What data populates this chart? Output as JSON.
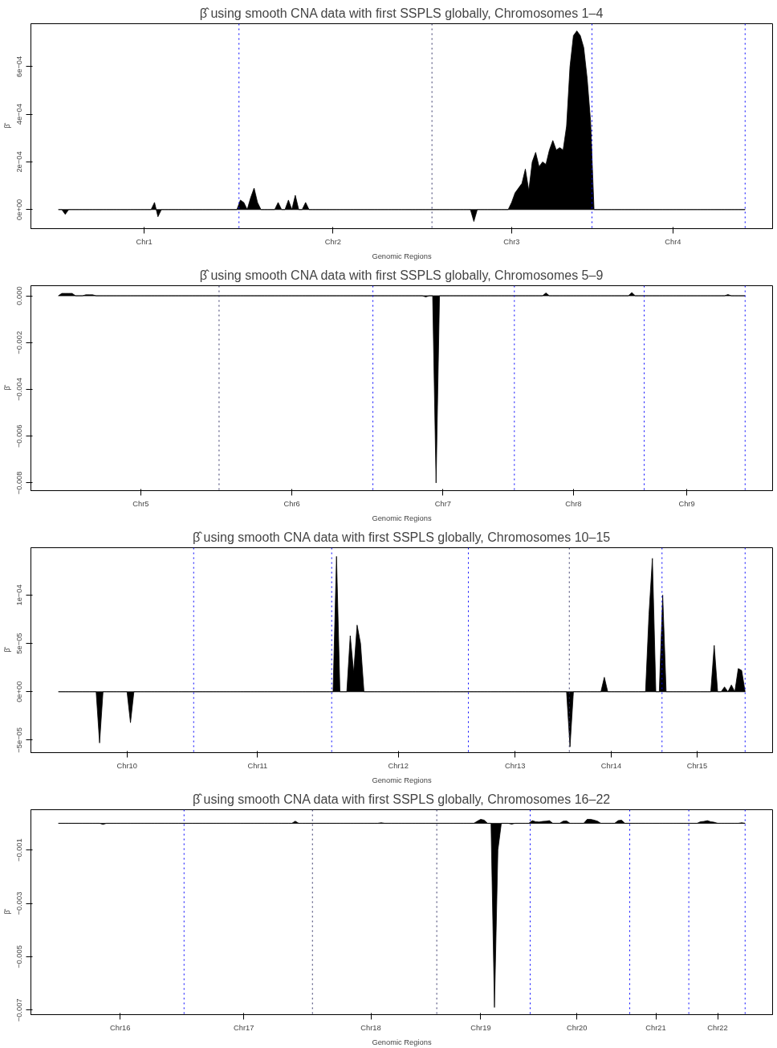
{
  "chart_data": [
    {
      "type": "area",
      "title": "β̂ using smooth CNA data with first SSPLS globally, Chromosomes 1–4",
      "xlabel": "Genomic Regions",
      "ylabel": "β̂",
      "color": "#000000",
      "categories": [
        null,
        null,
        null,
        null,
        null,
        null,
        null,
        null,
        null,
        null,
        null,
        null,
        null,
        null,
        null,
        null,
        null,
        null,
        null,
        null,
        null,
        null,
        null,
        null,
        null,
        "Chr1",
        null,
        null,
        null,
        null,
        null,
        null,
        null,
        null,
        null,
        null,
        null,
        null,
        null,
        null,
        null,
        null,
        null,
        null,
        null,
        null,
        null,
        null,
        null,
        null,
        null,
        null,
        null,
        null,
        null,
        null,
        null,
        null,
        null,
        null,
        null,
        null,
        null,
        null,
        null,
        null,
        null,
        null,
        null,
        null,
        null,
        null,
        null,
        null,
        null,
        null,
        null,
        null,
        null,
        null,
        "Chr2",
        null,
        null,
        null,
        null,
        null,
        null,
        null,
        null,
        null,
        null,
        null,
        null,
        null,
        null,
        null,
        null,
        null,
        null,
        null,
        null,
        null,
        null,
        null,
        null,
        null,
        null,
        null,
        null,
        null,
        null,
        null,
        null,
        null,
        null,
        null,
        null,
        null,
        null,
        null,
        null,
        null,
        null,
        null,
        null,
        null,
        null,
        null,
        null,
        null,
        null,
        null,
        "Chr3",
        null,
        null,
        null,
        null,
        null,
        null,
        null,
        null,
        null,
        null,
        null,
        null,
        null,
        null,
        null,
        null,
        null,
        null,
        null,
        null,
        null,
        null,
        null,
        null,
        null,
        null,
        null,
        null,
        null,
        null,
        null,
        null,
        null,
        null,
        null,
        null,
        null,
        null,
        null,
        null,
        null,
        null,
        null,
        null,
        null,
        null,
        "Chr4",
        null,
        null,
        null,
        null,
        null,
        null,
        null,
        null,
        null,
        null,
        null,
        null,
        null,
        null,
        null,
        null,
        null,
        null,
        null,
        null,
        null
      ],
      "values": [
        0,
        0,
        -2e-05,
        0,
        0,
        0,
        0,
        0,
        0,
        0,
        0,
        0,
        0,
        0,
        0,
        0,
        0,
        0,
        0,
        0,
        0,
        0,
        0,
        0,
        0,
        0,
        0,
        0,
        3e-05,
        -3e-05,
        0,
        0,
        0,
        0,
        0,
        0,
        0,
        0,
        0,
        0,
        0,
        0,
        0,
        0,
        0,
        0,
        0,
        0,
        0,
        0,
        0,
        0,
        0,
        4e-05,
        3e-05,
        0,
        5e-05,
        9e-05,
        3e-05,
        0,
        0,
        0,
        0,
        0,
        3e-05,
        0,
        0,
        4e-05,
        0,
        6e-05,
        0,
        0,
        3e-05,
        0,
        0,
        0,
        0,
        0,
        0,
        0,
        0,
        0,
        0,
        0,
        0,
        0,
        0,
        0,
        0,
        0,
        0,
        0,
        0,
        0,
        0,
        0,
        0,
        0,
        0,
        0,
        0,
        0,
        0,
        0,
        0,
        0,
        0,
        0,
        0,
        0,
        0,
        0,
        0,
        0,
        0,
        0,
        0,
        0,
        0,
        0,
        0,
        -5e-05,
        0,
        0,
        0,
        0,
        0,
        0,
        0,
        0,
        0,
        0,
        3e-05,
        7e-05,
        9e-05,
        0.00011,
        0.00017,
        8e-05,
        0.0002,
        0.00024,
        0.00018,
        0.0002,
        0.00019,
        0.00025,
        0.00029,
        0.00025,
        0.00026,
        0.00025,
        0.00035,
        0.0006,
        0.00073,
        0.00075,
        0.00073,
        0.00068,
        0.00055,
        0.00037,
        0,
        0,
        0,
        0,
        0,
        0,
        0,
        0,
        0,
        0,
        0,
        0,
        0,
        0,
        0,
        0,
        0,
        0,
        0,
        0,
        0,
        0,
        0,
        0,
        0,
        0,
        0,
        0,
        0,
        0,
        0,
        0,
        0,
        0,
        0,
        0,
        0,
        0,
        0,
        0,
        0,
        0,
        0,
        0,
        0
      ],
      "ylim": [
        -8e-05,
        0.00078
      ],
      "yticks": [
        {
          "value": 0,
          "label": "0e+00"
        },
        {
          "value": 0.0002,
          "label": "2e−04"
        },
        {
          "value": 0.0004,
          "label": "4e−04"
        },
        {
          "value": 0.0006,
          "label": "6e−04"
        }
      ]
    },
    {
      "type": "area",
      "title": "β̂ using smooth CNA data with first SSPLS globally, Chromosomes 5–9",
      "xlabel": "Genomic Regions",
      "ylabel": "β̂",
      "color": "#000000",
      "categories": [
        null,
        null,
        null,
        null,
        null,
        null,
        null,
        null,
        null,
        null,
        null,
        null,
        null,
        null,
        null,
        null,
        null,
        null,
        null,
        null,
        null,
        null,
        null,
        null,
        "Chr5",
        null,
        null,
        null,
        null,
        null,
        null,
        null,
        null,
        null,
        null,
        null,
        null,
        null,
        null,
        null,
        null,
        null,
        null,
        null,
        null,
        null,
        null,
        null,
        null,
        null,
        null,
        null,
        null,
        null,
        null,
        null,
        null,
        null,
        null,
        null,
        null,
        null,
        null,
        null,
        null,
        null,
        null,
        null,
        "Chr6",
        null,
        null,
        null,
        null,
        null,
        null,
        null,
        null,
        null,
        null,
        null,
        null,
        null,
        null,
        null,
        null,
        null,
        null,
        null,
        null,
        null,
        null,
        null,
        null,
        null,
        null,
        null,
        null,
        null,
        null,
        null,
        null,
        null,
        null,
        null,
        null,
        null,
        null,
        null,
        null,
        null,
        null,
        null,
        "Chr7",
        null,
        null,
        null,
        null,
        null,
        null,
        null,
        null,
        null,
        null,
        null,
        null,
        null,
        null,
        null,
        null,
        null,
        null,
        null,
        null,
        null,
        null,
        null,
        null,
        null,
        null,
        null,
        null,
        null,
        null,
        null,
        null,
        null,
        null,
        null,
        null,
        null,
        "Chr8",
        null,
        null,
        null,
        null,
        null,
        null,
        null,
        null,
        null,
        null,
        null,
        null,
        null,
        null,
        null,
        null,
        null,
        null,
        null,
        null,
        null,
        null,
        null,
        null,
        null,
        null,
        null,
        null,
        null,
        null,
        null,
        null,
        "Chr9",
        null,
        null,
        null,
        null,
        null,
        null,
        null,
        null,
        null,
        null,
        null,
        null,
        null,
        null,
        null,
        null,
        null
      ],
      "values": [
        0,
        0.0001,
        0.0001,
        0.0001,
        0.0001,
        0,
        0,
        0,
        4e-05,
        4e-05,
        4e-05,
        0,
        0,
        0,
        0,
        0,
        0,
        0,
        0,
        0,
        0,
        0,
        0,
        0,
        0,
        0,
        0,
        0,
        0,
        0,
        0,
        0,
        0,
        0,
        0,
        0,
        0,
        0,
        0,
        0,
        0,
        0,
        0,
        0,
        0,
        0,
        0,
        0,
        0,
        0,
        0,
        0,
        0,
        0,
        0,
        0,
        0,
        0,
        0,
        0,
        0,
        0,
        0,
        0,
        0,
        0,
        0,
        0,
        0,
        0,
        0,
        0,
        0,
        0,
        0,
        0,
        0,
        0,
        0,
        0,
        0,
        0,
        0,
        0,
        0,
        0,
        0,
        0,
        0,
        0,
        0,
        0,
        0,
        0,
        0,
        0,
        0,
        0,
        0,
        0,
        0,
        0,
        0,
        0,
        0,
        0,
        0,
        -5e-05,
        0,
        0,
        -0.008,
        0,
        0,
        0,
        0,
        0,
        0,
        0,
        0,
        0,
        0,
        0,
        0,
        0,
        0,
        0,
        0,
        0,
        0,
        0,
        0,
        0,
        0,
        0,
        0,
        0,
        0,
        0,
        0,
        0,
        0,
        0,
        0.00012,
        0,
        0,
        0,
        0,
        0,
        0,
        0,
        0,
        0,
        0,
        0,
        0,
        0,
        0,
        0,
        0,
        0,
        0,
        0,
        0,
        0,
        0,
        0,
        0,
        0.00014,
        0,
        0,
        0,
        0,
        0,
        0,
        0,
        0,
        0,
        0,
        0,
        0,
        0,
        0,
        0,
        0,
        0,
        0,
        0,
        0,
        0,
        0,
        0,
        0,
        0,
        0,
        0,
        5e-05,
        0,
        0,
        0,
        0,
        0
      ],
      "ylim": [
        -0.00833,
        0.00043
      ],
      "yticks": [
        {
          "value": 0,
          "label": "0.000"
        },
        {
          "value": -0.002,
          "label": "−0.002"
        },
        {
          "value": -0.004,
          "label": "−0.004"
        },
        {
          "value": -0.006,
          "label": "−0.006"
        },
        {
          "value": -0.008,
          "label": "−0.008"
        }
      ]
    },
    {
      "type": "area",
      "title": "β̂ using smooth CNA data with first SSPLS globally, Chromosomes 10–15",
      "xlabel": "Genomic Regions",
      "ylabel": "β̂",
      "color": "#000000",
      "categories": [
        null,
        null,
        null,
        null,
        null,
        null,
        null,
        null,
        null,
        null,
        null,
        null,
        null,
        null,
        null,
        null,
        null,
        null,
        null,
        null,
        "Chr10",
        null,
        null,
        null,
        null,
        null,
        null,
        null,
        null,
        null,
        null,
        null,
        null,
        null,
        null,
        null,
        null,
        null,
        null,
        null,
        null,
        null,
        null,
        null,
        null,
        null,
        null,
        null,
        null,
        null,
        null,
        null,
        null,
        null,
        null,
        null,
        null,
        null,
        "Chr11",
        null,
        null,
        null,
        null,
        null,
        null,
        null,
        null,
        null,
        null,
        null,
        null,
        null,
        null,
        null,
        null,
        null,
        null,
        null,
        null,
        null,
        null,
        null,
        null,
        null,
        null,
        null,
        null,
        null,
        null,
        null,
        null,
        null,
        null,
        null,
        null,
        null,
        null,
        null,
        null,
        "Chr12",
        null,
        null,
        null,
        null,
        null,
        null,
        null,
        null,
        null,
        null,
        null,
        null,
        null,
        null,
        null,
        null,
        null,
        null,
        null,
        null,
        null,
        null,
        null,
        null,
        null,
        null,
        null,
        null,
        null,
        null,
        null,
        null,
        null,
        "Chr13",
        null,
        null,
        null,
        null,
        null,
        null,
        null,
        null,
        null,
        null,
        null,
        null,
        null,
        null,
        null,
        null,
        null,
        null,
        null,
        null,
        null,
        null,
        null,
        null,
        null,
        null,
        null,
        "Chr14",
        null,
        null,
        null,
        null,
        null,
        null,
        null,
        null,
        null,
        null,
        null,
        null,
        null,
        null,
        null,
        null,
        null,
        null,
        null,
        null,
        null,
        null,
        null,
        null,
        "Chr15",
        null,
        null,
        null,
        null,
        null,
        null,
        null,
        null,
        null,
        null,
        null,
        null,
        null,
        null
      ],
      "values": [
        0,
        0,
        0,
        0,
        0,
        0,
        0,
        0,
        0,
        0,
        0,
        0,
        -5.3e-05,
        0,
        0,
        0,
        0,
        0,
        0,
        0,
        0,
        -3.2e-05,
        0,
        0,
        0,
        0,
        0,
        0,
        0,
        0,
        0,
        0,
        0,
        0,
        0,
        0,
        0,
        0,
        0,
        0,
        0,
        0,
        0,
        0,
        0,
        0,
        0,
        0,
        0,
        0,
        0,
        0,
        0,
        0,
        0,
        0,
        0,
        0,
        0,
        0,
        0,
        0,
        0,
        0,
        0,
        0,
        0,
        0,
        0,
        0,
        0,
        0,
        0,
        0,
        0,
        0,
        0,
        0,
        0,
        0,
        0,
        0.00014,
        0,
        0,
        0,
        5.8e-05,
        2e-05,
        6.9e-05,
        5e-05,
        0,
        0,
        0,
        0,
        0,
        0,
        0,
        0,
        0,
        0,
        0,
        0,
        0,
        0,
        0,
        0,
        0,
        0,
        0,
        0,
        0,
        0,
        0,
        0,
        0,
        0,
        0,
        0,
        0,
        0,
        0,
        0,
        0,
        0,
        0,
        0,
        0,
        0,
        0,
        0,
        0,
        0,
        0,
        0,
        0,
        0,
        0,
        0,
        0,
        0,
        0,
        0,
        0,
        0,
        0,
        0,
        0,
        0,
        0,
        0,
        -5.7e-05,
        0,
        0,
        0,
        0,
        0,
        0,
        0,
        0,
        0,
        1.5e-05,
        0,
        0,
        0,
        0,
        0,
        0,
        0,
        0,
        0,
        0,
        0,
        0,
        8e-05,
        0.000138,
        0,
        0,
        0.0001,
        0,
        0,
        0,
        0,
        0,
        0,
        0,
        0,
        0,
        0,
        0,
        0,
        0,
        0,
        4.8e-05,
        0,
        0,
        5e-06,
        0,
        7e-06,
        0,
        2.4e-05,
        2.2e-05,
        0
      ],
      "ylim": [
        -6.3e-05,
        0.000149
      ],
      "yticks": [
        {
          "value": -5e-05,
          "label": "−5e−05"
        },
        {
          "value": 0,
          "label": "0e+00"
        },
        {
          "value": 5e-05,
          "label": "5e−05"
        },
        {
          "value": 0.0001,
          "label": "1e−04"
        }
      ]
    },
    {
      "type": "area",
      "title": "β̂ using smooth CNA data with first SSPLS globally, Chromosomes 16–22",
      "xlabel": "Genomic Regions",
      "ylabel": "β̂",
      "color": "#000000",
      "categories": [
        null,
        null,
        null,
        null,
        null,
        null,
        null,
        null,
        null,
        null,
        null,
        null,
        null,
        null,
        null,
        null,
        null,
        null,
        "Chr16",
        null,
        null,
        null,
        null,
        null,
        null,
        null,
        null,
        null,
        null,
        null,
        null,
        null,
        null,
        null,
        null,
        null,
        null,
        null,
        null,
        null,
        null,
        null,
        null,
        null,
        null,
        null,
        null,
        null,
        null,
        null,
        null,
        null,
        null,
        null,
        "Chr17",
        null,
        null,
        null,
        null,
        null,
        null,
        null,
        null,
        null,
        null,
        null,
        null,
        null,
        null,
        null,
        null,
        null,
        null,
        null,
        null,
        null,
        null,
        null,
        null,
        null,
        null,
        null,
        null,
        null,
        null,
        null,
        null,
        null,
        null,
        null,
        null,
        "Chr18",
        null,
        null,
        null,
        null,
        null,
        null,
        null,
        null,
        null,
        null,
        null,
        null,
        null,
        null,
        null,
        null,
        null,
        null,
        null,
        null,
        null,
        null,
        null,
        null,
        null,
        null,
        null,
        null,
        null,
        null,
        null,
        "Chr19",
        null,
        null,
        null,
        null,
        null,
        null,
        null,
        null,
        null,
        null,
        null,
        null,
        null,
        null,
        null,
        null,
        null,
        null,
        null,
        null,
        null,
        null,
        null,
        null,
        null,
        null,
        null,
        "Chr20",
        null,
        null,
        null,
        null,
        null,
        null,
        null,
        null,
        null,
        null,
        null,
        null,
        null,
        null,
        null,
        null,
        null,
        null,
        null,
        null,
        null,
        null,
        "Chr21",
        null,
        null,
        null,
        null,
        null,
        null,
        null,
        null,
        null,
        null,
        null,
        null,
        null,
        null,
        null,
        null,
        null,
        "Chr22",
        null,
        null,
        null,
        null,
        null,
        null,
        null,
        null
      ],
      "values": [
        0,
        0,
        0,
        0,
        0,
        0,
        0,
        0,
        0,
        0,
        0,
        0,
        0,
        -4e-05,
        0,
        0,
        0,
        0,
        0,
        0,
        0,
        0,
        0,
        0,
        0,
        0,
        0,
        0,
        0,
        0,
        0,
        0,
        0,
        0,
        0,
        0,
        0,
        0,
        0,
        0,
        0,
        0,
        0,
        0,
        0,
        0,
        0,
        0,
        0,
        0,
        0,
        0,
        0,
        0,
        0,
        0,
        0,
        0,
        0,
        0,
        0,
        0,
        0,
        0,
        0,
        0,
        0,
        0,
        0,
        8e-05,
        0,
        0,
        0,
        0,
        0,
        0,
        0,
        0,
        0,
        0,
        0,
        0,
        0,
        0,
        0,
        0,
        0,
        0,
        0,
        0,
        0,
        0,
        0,
        0,
        2e-05,
        0,
        0,
        0,
        0,
        0,
        0,
        0,
        0,
        0,
        0,
        0,
        0,
        0,
        0,
        0,
        0,
        0,
        0,
        0,
        0,
        0,
        0,
        0,
        0,
        0,
        0,
        0,
        8e-05,
        0.00015,
        0.00012,
        0,
        0,
        -0.0069,
        -0.001,
        0,
        0,
        0,
        -3e-05,
        0,
        0,
        0,
        0,
        0,
        0.0001,
        6e-05,
        5e-05,
        7e-05,
        8e-05,
        0.0001,
        0,
        0,
        0,
        8e-05,
        9e-05,
        0,
        0,
        0,
        0,
        0,
        0.00015,
        0.00015,
        0.00012,
        8e-05,
        0,
        0,
        0,
        0,
        0,
        0.0001,
        0.00012,
        0,
        0,
        0,
        0,
        0,
        0,
        0,
        0,
        0,
        0,
        0,
        0,
        0,
        0,
        0,
        0,
        0,
        0,
        0,
        0,
        0,
        0,
        6e-05,
        7e-05,
        0.0001,
        6e-05,
        4e-05,
        0,
        0,
        0,
        0,
        0,
        0,
        0,
        2e-05,
        0
      ],
      "ylim": [
        -0.00717,
        0.00051
      ],
      "yticks": [
        {
          "value": -0.001,
          "label": "−0.001"
        },
        {
          "value": -0.003,
          "label": "−0.003"
        },
        {
          "value": -0.005,
          "label": "−0.005"
        },
        {
          "value": -0.007,
          "label": "−0.007"
        }
      ]
    }
  ]
}
